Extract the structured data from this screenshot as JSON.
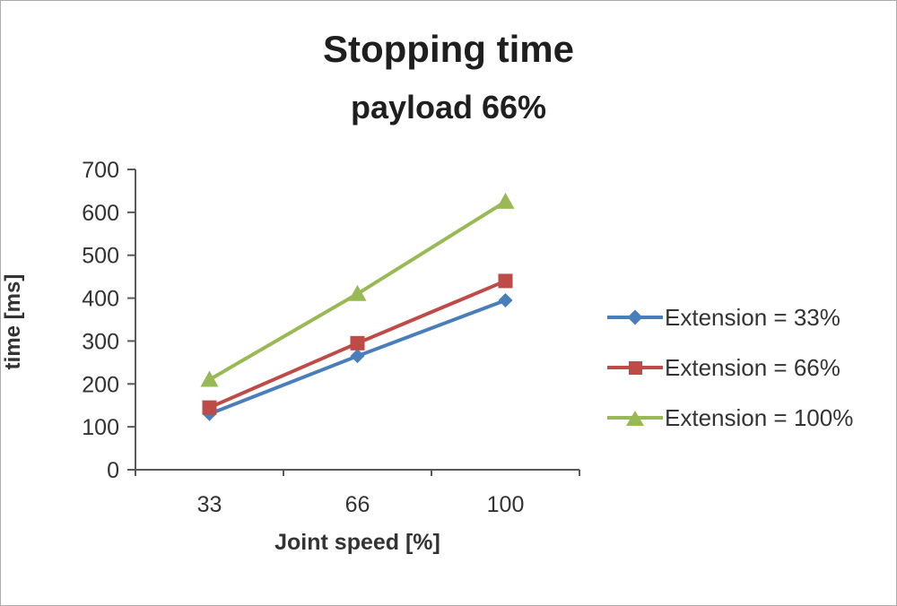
{
  "chart_data": {
    "type": "line",
    "title": "Stopping time",
    "subtitle": "payload 66%",
    "xlabel": "Joint speed [%]",
    "ylabel": "time [ms]",
    "categories": [
      "33",
      "66",
      "100"
    ],
    "ylim": [
      0,
      700
    ],
    "ytick_step": 100,
    "grid": false,
    "legend_position": "right",
    "series": [
      {
        "name": "Extension = 33%",
        "color": "#4a7ebb",
        "marker": "diamond",
        "values": [
          130,
          265,
          395
        ]
      },
      {
        "name": "Extension = 66%",
        "color": "#be4b48",
        "marker": "square",
        "values": [
          145,
          295,
          440
        ]
      },
      {
        "name": "Extension = 100%",
        "color": "#98b954",
        "marker": "triangle",
        "values": [
          210,
          410,
          625
        ]
      }
    ]
  }
}
